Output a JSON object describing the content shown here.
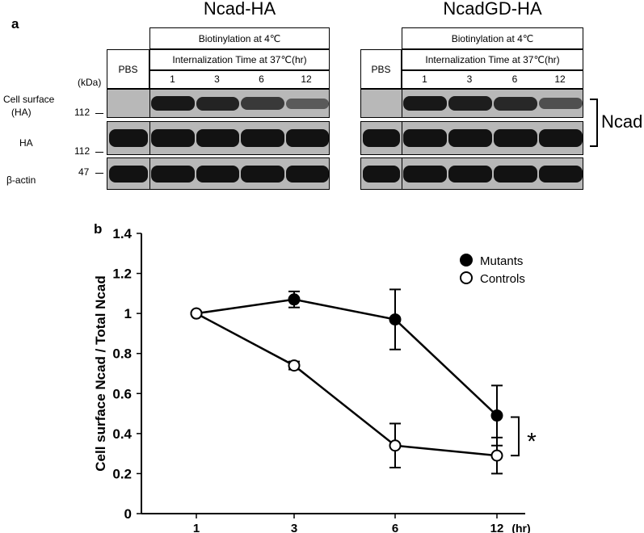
{
  "panel_a": {
    "letter": "a",
    "kda_label": "(kDa)",
    "row_labels": {
      "cell_surface_1": "Cell surface",
      "cell_surface_2": "(HA)",
      "ha": "HA",
      "actin": "β-actin"
    },
    "markers": {
      "m112a": "112",
      "m112b": "112",
      "m47": "47"
    },
    "ncad_label": "Ncad",
    "blots": [
      {
        "title": "Ncad-HA",
        "pbs": "PBS",
        "biotinylation": "Biotinylation at 4℃",
        "internalization": "Internalization Time at 37℃(hr)",
        "times": [
          "1",
          "3",
          "6",
          "12"
        ],
        "cell_surface_intensity": [
          0.95,
          0.85,
          0.65,
          0.35
        ],
        "ha_intensity": [
          1,
          1,
          1,
          1,
          1
        ],
        "actin_intensity": [
          1,
          1,
          1,
          1,
          1
        ]
      },
      {
        "title": "NcadGD-HA",
        "pbs": "PBS",
        "biotinylation": "Biotinylation at 4℃",
        "internalization": "Internalization Time at 37℃(hr)",
        "times": [
          "1",
          "3",
          "6",
          "12"
        ],
        "cell_surface_intensity": [
          0.95,
          0.9,
          0.8,
          0.45
        ],
        "ha_intensity": [
          1,
          1,
          1,
          1,
          1
        ],
        "actin_intensity": [
          1,
          1,
          1,
          1,
          1
        ]
      }
    ]
  },
  "panel_b": {
    "letter": "b",
    "significance": "*"
  },
  "chart_data": {
    "type": "line",
    "xlabel": "",
    "x_unit_label": "(hr)",
    "ylabel": "Cell surface Ncad / Total Ncad",
    "categories": [
      "1",
      "3",
      "6",
      "12"
    ],
    "ylim": [
      0,
      1.4
    ],
    "yticks": [
      "0",
      "0.2",
      "0.4",
      "0.6",
      "0.8",
      "1",
      "1.2",
      "1.4"
    ],
    "grid": false,
    "legend_position": "top-right",
    "series": [
      {
        "name": "Mutants",
        "marker": "filled-circle",
        "color": "#000000",
        "values": [
          1.0,
          1.07,
          0.97,
          0.49
        ],
        "errors": [
          0,
          0.04,
          0.15,
          0.15
        ]
      },
      {
        "name": "Controls",
        "marker": "open-circle",
        "color": "#000000",
        "values": [
          1.0,
          0.74,
          0.34,
          0.29
        ],
        "errors": [
          0,
          0.02,
          0.11,
          0.09
        ]
      }
    ]
  }
}
